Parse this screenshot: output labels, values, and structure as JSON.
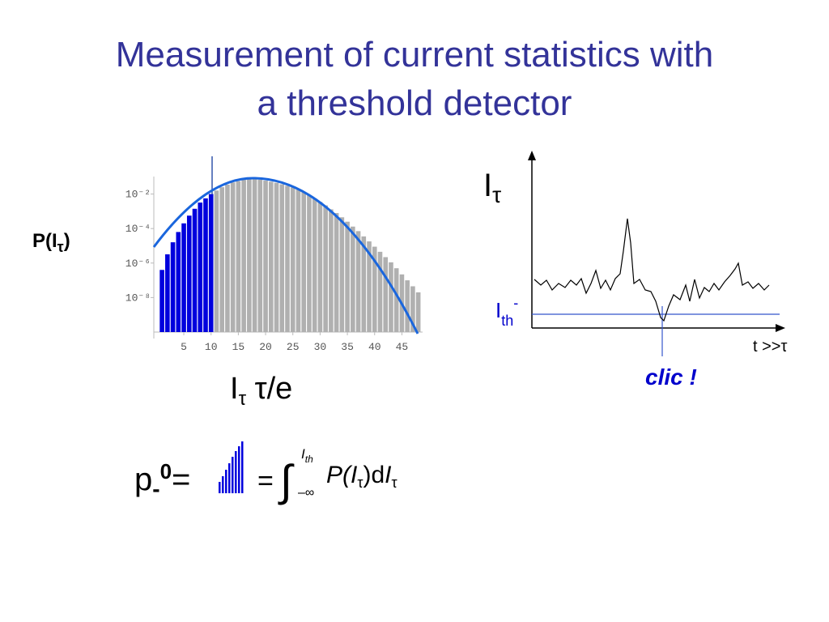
{
  "title": [
    "Measurement of current statistics with",
    "a threshold detector"
  ],
  "chart_data": {
    "type": "bar",
    "y_label": {
      "text": "P(I",
      "sub": "τ",
      "end": ")"
    },
    "x_label": {
      "text": "I",
      "sub": "τ",
      "rest": " τ/e"
    },
    "x": [
      1,
      2,
      3,
      4,
      5,
      6,
      7,
      8,
      9,
      10,
      11,
      12,
      13,
      14,
      15,
      16,
      17,
      18,
      19,
      20,
      21,
      22,
      23,
      24,
      25,
      26,
      27,
      28,
      29,
      30,
      31,
      32,
      33,
      34,
      35,
      36,
      37,
      38,
      39,
      40,
      41,
      42,
      43,
      44,
      45,
      46,
      47,
      48
    ],
    "values": [
      4e-07,
      3.2e-06,
      1.6e-05,
      6.3e-05,
      0.0002,
      0.00056,
      0.0014,
      0.0032,
      0.0056,
      0.01,
      0.016,
      0.025,
      0.035,
      0.047,
      0.056,
      0.066,
      0.071,
      0.072,
      0.068,
      0.06,
      0.052,
      0.045,
      0.037,
      0.03,
      0.024,
      0.018,
      0.013,
      0.0085,
      0.0056,
      0.0035,
      0.0022,
      0.0013,
      0.00079,
      0.00045,
      0.00025,
      0.00013,
      7.1e-05,
      3.5e-05,
      1.8e-05,
      8.9e-06,
      4.5e-06,
      2.2e-06,
      1.1e-06,
      5e-07,
      2.2e-07,
      1e-07,
      4.5e-08,
      2e-08
    ],
    "colors": [
      "#0000dd",
      "#0000dd",
      "#0000dd",
      "#0000dd",
      "#0000dd",
      "#0000dd",
      "#0000dd",
      "#0000dd",
      "#0000dd",
      "#0000dd",
      "#b0b0b0",
      "#b0b0b0",
      "#b0b0b0",
      "#b0b0b0",
      "#b0b0b0",
      "#b0b0b0",
      "#b0b0b0",
      "#b0b0b0",
      "#b0b0b0",
      "#b0b0b0",
      "#b0b0b0",
      "#b0b0b0",
      "#b0b0b0",
      "#b0b0b0",
      "#b0b0b0",
      "#b0b0b0",
      "#b0b0b0",
      "#b0b0b0",
      "#b0b0b0",
      "#b0b0b0",
      "#b0b0b0",
      "#b0b0b0",
      "#b0b0b0",
      "#b0b0b0",
      "#b0b0b0",
      "#b0b0b0",
      "#b0b0b0",
      "#b0b0b0",
      "#b0b0b0",
      "#b0b0b0",
      "#b0b0b0",
      "#b0b0b0",
      "#b0b0b0",
      "#b0b0b0",
      "#b0b0b0",
      "#b0b0b0",
      "#b0b0b0",
      "#b0b0b0"
    ],
    "xlim": [
      -0.5,
      48.5
    ],
    "xticks": [
      5,
      10,
      15,
      20,
      25,
      30,
      35,
      40,
      45
    ],
    "ylim": [
      1e-10,
      0.1
    ],
    "log_y": true,
    "yticks": [
      {
        "value": 0.01,
        "label": "10⁻²"
      },
      {
        "value": 0.0001,
        "label": "10⁻⁴"
      },
      {
        "value": 1e-06,
        "label": "10⁻⁶"
      },
      {
        "value": 1e-08,
        "label": "10⁻⁸"
      }
    ]
  },
  "trace": {
    "y_label": {
      "text": "I",
      "sub": "τ"
    },
    "threshold_label": {
      "text": "I",
      "sub": "th",
      "sup": "-"
    },
    "x_label": "t >>τ",
    "annotation": "clic !"
  },
  "equation": {
    "lhs": "p",
    "lhs_sub": "-",
    "lhs_sup": "0",
    "eq1": "=",
    "eq2": "=",
    "integral": "∫",
    "upper": "I",
    "upper_sub": "th",
    "lower": "–∞",
    "integrand": "P(",
    "var": "I",
    "var_sub": "τ",
    "close": ")d",
    "dvar": "I",
    "dvar_sub": "τ"
  }
}
